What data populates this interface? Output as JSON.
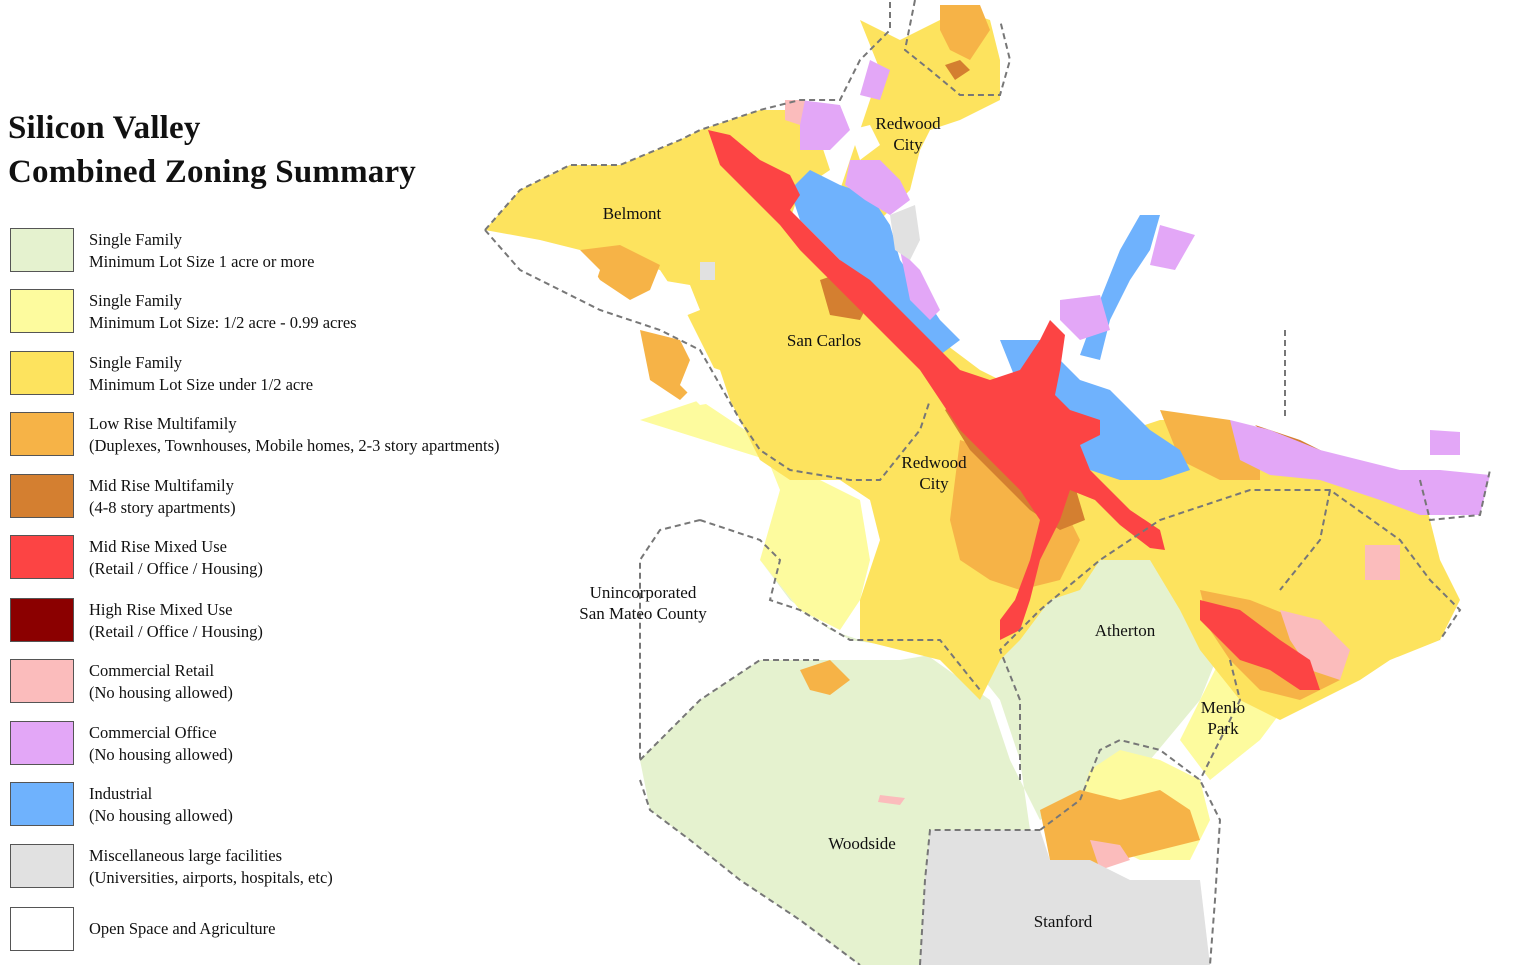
{
  "title": {
    "line1": "Silicon Valley",
    "line2": "Combined Zoning Summary"
  },
  "legend": [
    {
      "line1": "Single Family",
      "line2": "Minimum Lot Size 1 acre or more",
      "color": "#e5f2cf"
    },
    {
      "line1": "Single Family",
      "line2": "Minimum Lot Size: 1/2 acre - 0.99 acres",
      "color": "#fdfb9e"
    },
    {
      "line1": "Single Family",
      "line2": "Minimum Lot Size under 1/2 acre",
      "color": "#fde35e"
    },
    {
      "line1": "Low Rise Multifamily",
      "line2": "(Duplexes, Townhouses, Mobile homes, 2-3 story apartments)",
      "color": "#f6b347"
    },
    {
      "line1": "Mid Rise Multifamily",
      "line2": "(4-8 story apartments)",
      "color": "#d47f30"
    },
    {
      "line1": "Mid Rise Mixed Use",
      "line2": "(Retail / Office / Housing)",
      "color": "#fc4444"
    },
    {
      "line1": "High Rise Mixed Use",
      "line2": "(Retail / Office / Housing)",
      "color": "#8b0000"
    },
    {
      "line1": "Commercial Retail",
      "line2": "(No housing allowed)",
      "color": "#fbbcbc"
    },
    {
      "line1": "Commercial Office",
      "line2": "(No housing allowed)",
      "color": "#e3a7f7"
    },
    {
      "line1": "Industrial",
      "line2": "(No housing allowed)",
      "color": "#6fb2fd"
    },
    {
      "line1": "Miscellaneous large facilities",
      "line2": "(Universities, airports, hospitals, etc)",
      "color": "#e1e1e1"
    },
    {
      "line1": "Open Space and Agriculture",
      "line2": "",
      "color": "#ffffff"
    }
  ],
  "places": {
    "redwood_city_north": [
      "Redwood",
      "City"
    ],
    "belmont": "Belmont",
    "san_carlos": "San Carlos",
    "redwood_city": [
      "Redwood",
      "City"
    ],
    "unincorporated": [
      "Unincorporated",
      "San Mateo County"
    ],
    "atherton": "Atherton",
    "menlo_park": [
      "Menlo",
      "Park"
    ],
    "woodside": "Woodside",
    "stanford": "Stanford"
  }
}
